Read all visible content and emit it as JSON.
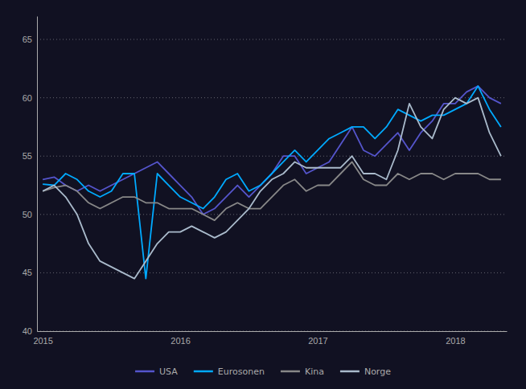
{
  "chart_data": {
    "type": "line",
    "categories": [
      "2015",
      null,
      null,
      null,
      null,
      null,
      null,
      null,
      null,
      null,
      null,
      null,
      "2016",
      null,
      null,
      null,
      null,
      null,
      null,
      null,
      null,
      null,
      null,
      null,
      "2017",
      null,
      null,
      null,
      null,
      null,
      null,
      null,
      null,
      null,
      null,
      null,
      "2018",
      null,
      null,
      null,
      null
    ],
    "series": [
      {
        "name": "USA",
        "color": "#5555cc",
        "values": [
          53.0,
          53.2,
          52.5,
          52.0,
          52.5,
          52.0,
          52.5,
          53.0,
          53.5,
          54.0,
          54.5,
          53.5,
          52.5,
          51.5,
          50.0,
          50.5,
          51.5,
          52.5,
          51.5,
          52.5,
          53.5,
          55.0,
          55.0,
          53.5,
          54.0,
          54.5,
          56.0,
          57.5,
          55.5,
          55.0,
          56.0,
          57.0,
          55.5,
          57.0,
          58.0,
          59.5,
          59.5,
          60.5,
          61.0,
          60.0,
          59.5
        ]
      },
      {
        "name": "Eurosonen",
        "color": "#00aaff",
        "values": [
          52.6,
          52.5,
          53.5,
          53.0,
          52.0,
          51.5,
          52.0,
          53.5,
          53.5,
          44.5,
          53.5,
          52.5,
          51.5,
          51.0,
          50.5,
          51.5,
          53.0,
          53.5,
          52.0,
          52.5,
          53.5,
          54.5,
          55.5,
          54.5,
          55.5,
          56.5,
          57.0,
          57.5,
          57.5,
          56.5,
          57.5,
          59.0,
          58.5,
          58.0,
          58.5,
          58.5,
          59.0,
          59.5,
          61.0,
          59.0,
          57.5
        ]
      },
      {
        "name": "Kina",
        "color": "#888888",
        "values": [
          52.0,
          52.3,
          52.5,
          52.0,
          51.0,
          50.5,
          51.0,
          51.5,
          51.5,
          51.0,
          51.0,
          50.5,
          50.5,
          50.5,
          50.0,
          49.5,
          50.5,
          51.0,
          50.5,
          50.5,
          51.5,
          52.5,
          53.0,
          52.0,
          52.5,
          52.5,
          53.5,
          54.5,
          53.0,
          52.5,
          52.5,
          53.5,
          53.0,
          53.5,
          53.5,
          53.0,
          53.5,
          53.5,
          53.5,
          53.0,
          53.0
        ]
      },
      {
        "name": "Norge",
        "color": "#aabbcc",
        "values": [
          52.0,
          52.5,
          51.5,
          50.0,
          47.5,
          46.0,
          45.5,
          45.0,
          44.5,
          46.0,
          47.5,
          48.5,
          48.5,
          49.0,
          48.5,
          48.0,
          48.5,
          49.5,
          50.5,
          52.0,
          53.0,
          53.5,
          54.5,
          54.0,
          54.0,
          54.0,
          54.0,
          55.0,
          53.5,
          53.5,
          53.0,
          55.5,
          59.5,
          57.5,
          56.5,
          59.0,
          60.0,
          59.5,
          60.0,
          57.0,
          55.0
        ]
      }
    ],
    "ylim": [
      40,
      67
    ],
    "yticks": [
      40,
      45,
      50,
      55,
      60,
      65
    ],
    "grid": true,
    "legend": "bottom"
  }
}
